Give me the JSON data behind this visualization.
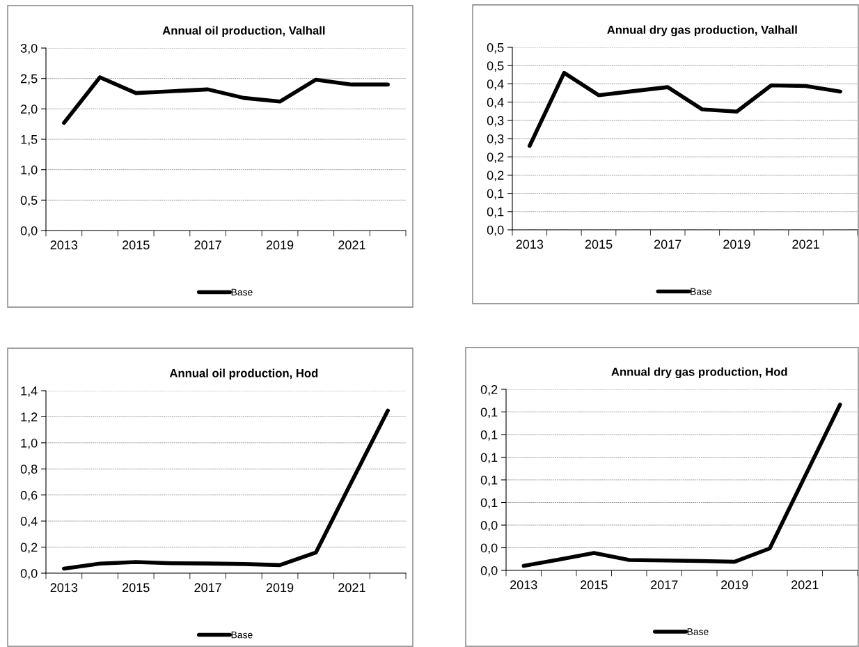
{
  "chart_data": [
    {
      "type": "line",
      "title": "Annual oil production, Valhall",
      "categories": [
        "2013",
        null,
        "2015",
        null,
        "2017",
        null,
        "2019",
        null,
        "2021",
        null
      ],
      "series": [
        {
          "name": "Base",
          "color": "#000000",
          "values": [
            1.77,
            2.52,
            2.26,
            2.29,
            2.32,
            2.18,
            2.12,
            2.48,
            2.4,
            2.4
          ]
        }
      ],
      "ylim": [
        0,
        3.0
      ],
      "yticks": [
        {
          "value": 0,
          "label": "0,0"
        },
        {
          "value": 0.5,
          "label": "0,5"
        },
        {
          "value": 1.0,
          "label": "1,0"
        },
        {
          "value": 1.5,
          "label": "1,5"
        },
        {
          "value": 2.0,
          "label": "2,0"
        },
        {
          "value": 2.5,
          "label": "2,5"
        },
        {
          "value": 3.0,
          "label": "3,0"
        }
      ],
      "grid": "y",
      "legend": "bottom",
      "marker": "none",
      "line_style": "solid"
    },
    {
      "type": "line",
      "title": "Annual dry gas production, Valhall",
      "categories": [
        "2013",
        null,
        "2015",
        null,
        "2017",
        null,
        "2019",
        null,
        "2021",
        null
      ],
      "series": [
        {
          "name": "Base",
          "color": "#000000",
          "values": [
            0.23,
            0.43,
            0.369,
            0.38,
            0.391,
            0.33,
            0.324,
            0.396,
            0.394,
            0.379
          ]
        }
      ],
      "ylim": [
        0,
        0.5
      ],
      "yticks": [
        {
          "value": 0,
          "label": "0,0"
        },
        {
          "value": 0.05,
          "label": "0,1"
        },
        {
          "value": 0.1,
          "label": "0,1"
        },
        {
          "value": 0.15,
          "label": "0,2"
        },
        {
          "value": 0.2,
          "label": "0,2"
        },
        {
          "value": 0.25,
          "label": "0,3"
        },
        {
          "value": 0.3,
          "label": "0,3"
        },
        {
          "value": 0.35,
          "label": "0,4"
        },
        {
          "value": 0.4,
          "label": "0,4"
        },
        {
          "value": 0.45,
          "label": "0,5"
        },
        {
          "value": 0.5,
          "label": "0,5"
        }
      ],
      "grid": "y",
      "legend": "bottom",
      "marker": "none",
      "line_style": "solid"
    },
    {
      "type": "line",
      "title": "Annual oil production, Hod",
      "categories": [
        "2013",
        null,
        "2015",
        null,
        "2017",
        null,
        "2019",
        null,
        "2021",
        null
      ],
      "series": [
        {
          "name": "Base",
          "color": "#000000",
          "values": [
            0.035,
            0.074,
            0.086,
            0.076,
            0.074,
            0.07,
            0.062,
            0.158,
            0.705,
            1.248
          ]
        }
      ],
      "ylim": [
        0,
        1.4
      ],
      "yticks": [
        {
          "value": 0,
          "label": "0,0"
        },
        {
          "value": 0.2,
          "label": "0,2"
        },
        {
          "value": 0.4,
          "label": "0,4"
        },
        {
          "value": 0.6,
          "label": "0,6"
        },
        {
          "value": 0.8,
          "label": "0,8"
        },
        {
          "value": 1.0,
          "label": "1,0"
        },
        {
          "value": 1.2,
          "label": "1,2"
        },
        {
          "value": 1.4,
          "label": "1,4"
        }
      ],
      "grid": "y",
      "legend": "bottom",
      "marker": "none",
      "line_style": "solid"
    },
    {
      "type": "line",
      "title": "Annual dry gas production, Hod",
      "categories": [
        "2013",
        null,
        "2015",
        null,
        "2017",
        null,
        "2019",
        null,
        "2021",
        null
      ],
      "series": [
        {
          "name": "Base",
          "color": "#000000",
          "values": [
            0.004,
            0.0095,
            0.0154,
            0.0092,
            0.0088,
            0.0083,
            0.0076,
            0.0194,
            0.083,
            0.1465
          ]
        }
      ],
      "ylim": [
        0,
        0.16
      ],
      "yticks": [
        {
          "value": 0,
          "label": "0,0"
        },
        {
          "value": 0.02,
          "label": "0,0"
        },
        {
          "value": 0.04,
          "label": "0,0"
        },
        {
          "value": 0.06,
          "label": "0,1"
        },
        {
          "value": 0.08,
          "label": "0,1"
        },
        {
          "value": 0.1,
          "label": "0,1"
        },
        {
          "value": 0.12,
          "label": "0,1"
        },
        {
          "value": 0.14,
          "label": "0,1"
        },
        {
          "value": 0.16,
          "label": "0,2"
        }
      ],
      "grid": "y",
      "legend": "bottom",
      "marker": "none",
      "line_style": "solid"
    }
  ]
}
